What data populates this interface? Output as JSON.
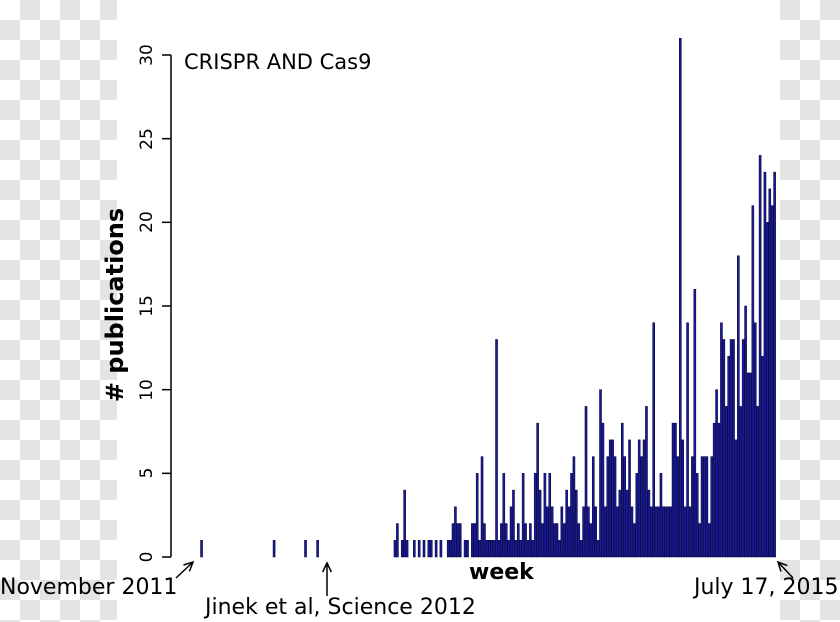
{
  "chart_data": {
    "type": "bar",
    "title": "CRISPR AND Cas9",
    "xlabel": "week",
    "ylabel": "# publications",
    "ylim": [
      0,
      31
    ],
    "yticks": [
      0,
      5,
      10,
      15,
      20,
      25,
      30
    ],
    "ytick_labels": [
      "0",
      "5",
      "10",
      "15",
      "20",
      "25",
      "30"
    ],
    "grid": false,
    "legend": "none",
    "bar_color": "#1a1a96",
    "bar_edge_color": "#000033",
    "annotations": {
      "start": "November 2011",
      "jinek": "Jinek et al, Science 2012",
      "end": "July 17, 2015"
    },
    "values": [
      0,
      0,
      0,
      0,
      0,
      0,
      1,
      0,
      0,
      0,
      0,
      0,
      0,
      0,
      0,
      0,
      0,
      0,
      0,
      0,
      0,
      0,
      0,
      0,
      0,
      0,
      0,
      0,
      0,
      0,
      0,
      0,
      0,
      0,
      0,
      0,
      1,
      0,
      0,
      0,
      0,
      0,
      0,
      0,
      0,
      0,
      0,
      0,
      0,
      1,
      0,
      0,
      0,
      0,
      1,
      0,
      0,
      0,
      0,
      0,
      0,
      0,
      0,
      0,
      0,
      0,
      0,
      0,
      0,
      0,
      0,
      0,
      0,
      0,
      0,
      0,
      0,
      0,
      0,
      0,
      0,
      0,
      0,
      0,
      0,
      0,
      1,
      2,
      0,
      1,
      4,
      1,
      0,
      0,
      1,
      0,
      1,
      0,
      1,
      0,
      1,
      1,
      0,
      1,
      0,
      1,
      0,
      0,
      1,
      1,
      2,
      3,
      2,
      2,
      0,
      1,
      1,
      0,
      2,
      2,
      5,
      1,
      6,
      2,
      1,
      1,
      1,
      1,
      13,
      1,
      2,
      5,
      2,
      1,
      3,
      4,
      1,
      2,
      1,
      5,
      2,
      1,
      2,
      1,
      5,
      8,
      4,
      2,
      5,
      3,
      5,
      3,
      2,
      2,
      1,
      3,
      2,
      4,
      3,
      5,
      6,
      4,
      2,
      1,
      3,
      9,
      3,
      2,
      6,
      3,
      1,
      10,
      8,
      3,
      6,
      7,
      7,
      6,
      3,
      4,
      8,
      6,
      4,
      7,
      3,
      2,
      5,
      7,
      6,
      7,
      9,
      4,
      3,
      14,
      3,
      3,
      5,
      3,
      3,
      3,
      3,
      8,
      8,
      6,
      31,
      7,
      3,
      14,
      3,
      6,
      16,
      5,
      2,
      6,
      6,
      6,
      2,
      6,
      8,
      10,
      8,
      14,
      13,
      9,
      12,
      13,
      13,
      7,
      18,
      9,
      13,
      15,
      11,
      11,
      21,
      14,
      9,
      24,
      12,
      23,
      20,
      22,
      21,
      23
    ]
  }
}
